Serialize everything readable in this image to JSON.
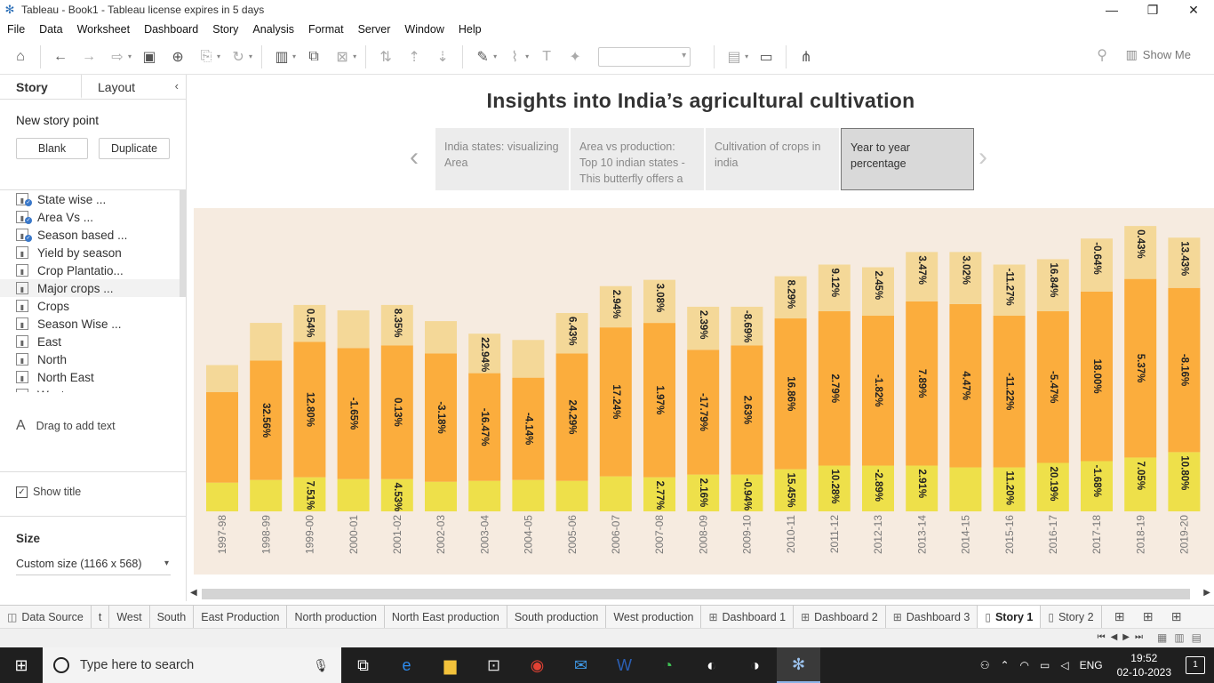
{
  "window": {
    "title": "Tableau - Book1 - Tableau license expires in 5 days",
    "minimize": "—",
    "restore": "❐",
    "close": "✕"
  },
  "menu": [
    "File",
    "Data",
    "Worksheet",
    "Dashboard",
    "Story",
    "Analysis",
    "Format",
    "Server",
    "Window",
    "Help"
  ],
  "toolbar": {
    "show_me": "Show Me"
  },
  "left_panel": {
    "tabs": [
      "Story",
      "Layout"
    ],
    "new_story_point": "New story point",
    "blank_button": "Blank",
    "duplicate_button": "Duplicate",
    "sheets": [
      {
        "label": "State wise ...",
        "checked": true
      },
      {
        "label": "Area Vs ...",
        "checked": true
      },
      {
        "label": "Season based ...",
        "checked": true
      },
      {
        "label": "Yield by season",
        "checked": false
      },
      {
        "label": "Crop Plantatio...",
        "checked": false
      },
      {
        "label": "Major crops ...",
        "checked": false
      },
      {
        "label": "Crops",
        "checked": false
      },
      {
        "label": "Season Wise ...",
        "checked": false
      },
      {
        "label": "East",
        "checked": false
      },
      {
        "label": "North",
        "checked": false
      },
      {
        "label": "North East",
        "checked": false
      },
      {
        "label": "West",
        "checked": false
      }
    ],
    "drag_text": "Drag to add text",
    "show_title": "Show title",
    "size_label": "Size",
    "size_value": "Custom size (1166 x 568)"
  },
  "story": {
    "title": "Insights into India’s agricultural cultivation",
    "points": [
      {
        "text": "India states: visualizing Area",
        "active": false
      },
      {
        "text": "Area vs production: Top 10 indian states - This butterfly offers a",
        "active": false
      },
      {
        "text": "Cultivation of crops in india",
        "active": false
      },
      {
        "text": "Year to year percentage",
        "active": true
      }
    ]
  },
  "chart_data": {
    "type": "bar",
    "stacked": true,
    "categories": [
      "1997-98",
      "1998-99",
      "1999-00",
      "2000-01",
      "2001-02",
      "2002-03",
      "2003-04",
      "2004-05",
      "2005-06",
      "2006-07",
      "2007-08",
      "2008-09",
      "2009-10",
      "2010-11",
      "2011-12",
      "2012-13",
      "2013-14",
      "2014-15",
      "2015-16",
      "2016-17",
      "2017-18",
      "2018-19",
      "2019-20"
    ],
    "series": [
      {
        "color": "#eee04a",
        "values": [
          32,
          35,
          38,
          36,
          36,
          33,
          34,
          35,
          34,
          39,
          38,
          41,
          41,
          47,
          51,
          51,
          51,
          49,
          49,
          54,
          56,
          60,
          66
        ],
        "labels": [
          "",
          "",
          "7.51%",
          "",
          "4.53%",
          "",
          "",
          "",
          "",
          "",
          "2.77%",
          "2.16%",
          "-0.94%",
          "15.45%",
          "10.28%",
          "-2.89%",
          "2.91%",
          "",
          "11.20%",
          "20.19%",
          "-1.68%",
          "7.05%",
          "10.80%"
        ]
      },
      {
        "color": "#fbad3d",
        "values": [
          101,
          133,
          151,
          146,
          149,
          143,
          120,
          114,
          142,
          166,
          172,
          139,
          144,
          168,
          172,
          167,
          183,
          182,
          169,
          169,
          189,
          199,
          183
        ],
        "labels": [
          "",
          "32.56%",
          "12.80%",
          "-1.65%",
          "0.13%",
          "-3.18%",
          "-16.47%",
          "-4.14%",
          "24.29%",
          "17.24%",
          "1.97%",
          "-17.79%",
          "2.63%",
          "16.86%",
          "2.79%",
          "-1.82%",
          "7.89%",
          "4.47%",
          "-11.22%",
          "-5.47%",
          "18.00%",
          "5.37%",
          "-8.16%"
        ]
      },
      {
        "color": "#f4d898",
        "values": [
          30,
          42,
          41,
          42,
          45,
          36,
          44,
          42,
          45,
          46,
          48,
          48,
          43,
          47,
          52,
          54,
          55,
          58,
          57,
          58,
          59,
          59,
          56
        ],
        "labels": [
          "",
          "",
          "0.54%",
          "",
          "8.35%",
          "",
          "22.94%",
          "",
          "6.43%",
          "2.94%",
          "3.08%",
          "2.39%",
          "-8.69%",
          "8.29%",
          "9.12%",
          "2.45%",
          "3.47%",
          "3.02%",
          "-11.27%",
          "16.84%",
          "-0.64%",
          "0.43%",
          "13.43%"
        ]
      }
    ],
    "ylim": [
      0,
      330
    ]
  },
  "sheet_tabs": [
    {
      "label": "Data Source",
      "icon": "◫",
      "active": false
    },
    {
      "label": "t",
      "icon": "",
      "active": false
    },
    {
      "label": "West",
      "icon": "",
      "active": false
    },
    {
      "label": "South",
      "icon": "",
      "active": false
    },
    {
      "label": "East Production",
      "icon": "",
      "active": false
    },
    {
      "label": "North production",
      "icon": "",
      "active": false
    },
    {
      "label": "North East production",
      "icon": "",
      "active": false
    },
    {
      "label": "South production",
      "icon": "",
      "active": false
    },
    {
      "label": "West production",
      "icon": "",
      "active": false
    },
    {
      "label": "Dashboard 1",
      "icon": "⊞",
      "active": false
    },
    {
      "label": "Dashboard 2",
      "icon": "⊞",
      "active": false
    },
    {
      "label": "Dashboard 3",
      "icon": "⊞",
      "active": false
    },
    {
      "label": "Story 1",
      "icon": "▯",
      "active": true
    },
    {
      "label": "Story 2",
      "icon": "▯",
      "active": false
    }
  ],
  "taskbar": {
    "search_placeholder": "Type here to search",
    "language": "ENG",
    "time": "19:52",
    "date": "02-10-2023",
    "notification_count": "1"
  }
}
